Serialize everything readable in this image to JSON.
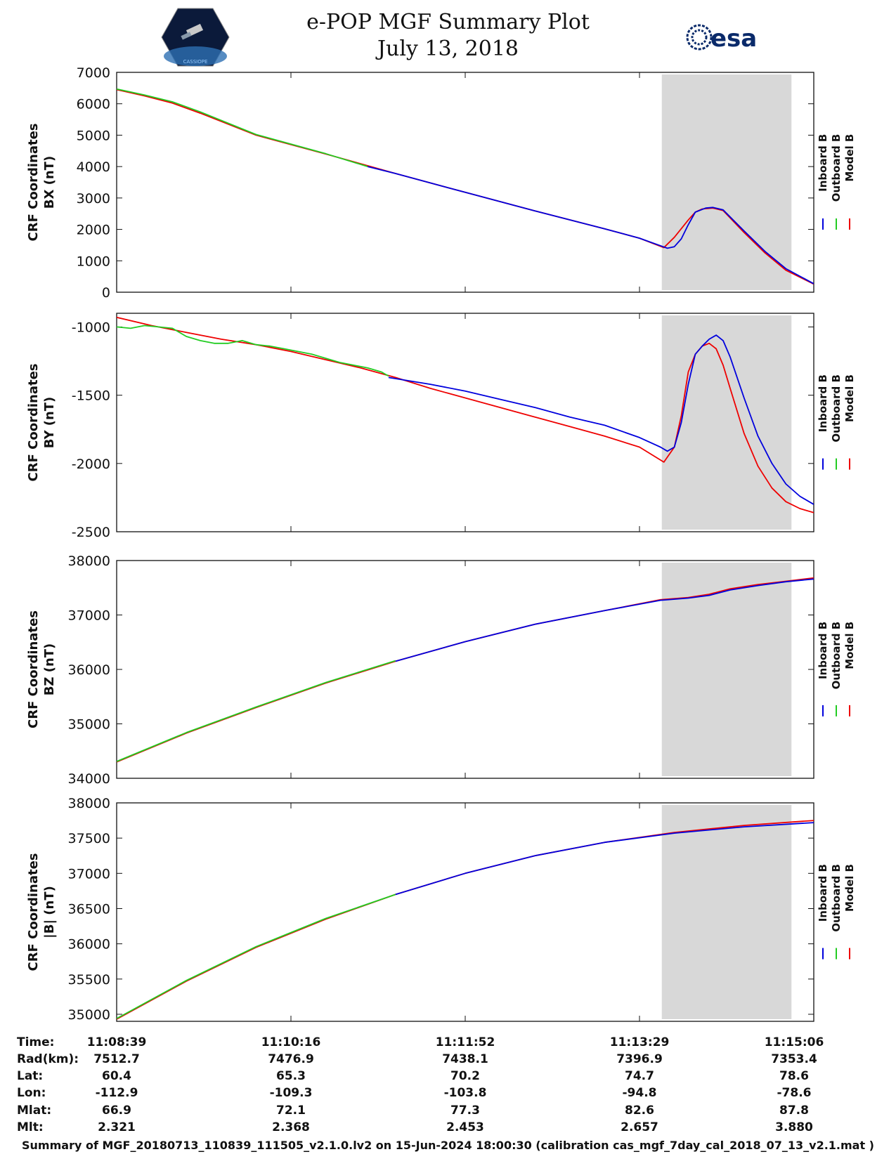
{
  "header": {
    "title_line1": "e-POP MGF Summary Plot",
    "title_line2": "July 13, 2018",
    "left_logo_text": "CASSIOPE",
    "right_logo_text": "esa"
  },
  "colors": {
    "inboard": "#0000dd",
    "outboard": "#22cc22",
    "model": "#ee0000",
    "shade": "#d8d8d8"
  },
  "chart_data": [
    {
      "type": "line",
      "ylabel_line1": "CRF Coordinates",
      "ylabel_line2": "BX (nT)",
      "ylim": [
        0,
        7000
      ],
      "yticks": [
        "0",
        "1000",
        "2000",
        "3000",
        "4000",
        "5000",
        "6000",
        "7000"
      ],
      "legend": [
        "Inboard B",
        "Outboard B",
        "Model B"
      ],
      "shaded_x": [
        0.782,
        0.968
      ],
      "series": [
        {
          "name": "Model B",
          "x": [
            0,
            0.04,
            0.08,
            0.12,
            0.2,
            0.3,
            0.4,
            0.5,
            0.6,
            0.7,
            0.75,
            0.785,
            0.8,
            0.82,
            0.83,
            0.84,
            0.855,
            0.87,
            0.9,
            0.93,
            0.96,
            1.0
          ],
          "y": [
            6450,
            6250,
            6020,
            5700,
            5000,
            4400,
            3780,
            3180,
            2590,
            2020,
            1720,
            1420,
            1750,
            2300,
            2550,
            2650,
            2680,
            2600,
            1900,
            1250,
            700,
            260
          ]
        },
        {
          "name": "Inboard B",
          "x": [
            0.36,
            0.4,
            0.5,
            0.6,
            0.7,
            0.75,
            0.78,
            0.79,
            0.8,
            0.81,
            0.82,
            0.83,
            0.845,
            0.855,
            0.87,
            0.9,
            0.93,
            0.96,
            1.0
          ],
          "y": [
            4000,
            3780,
            3180,
            2590,
            2020,
            1720,
            1480,
            1400,
            1450,
            1700,
            2150,
            2550,
            2680,
            2700,
            2620,
            1950,
            1300,
            750,
            270
          ]
        },
        {
          "name": "Outboard B",
          "x": [
            0,
            0.04,
            0.08,
            0.12,
            0.2,
            0.3,
            0.36
          ],
          "y": [
            6470,
            6280,
            6060,
            5740,
            5020,
            4410,
            4000
          ]
        }
      ]
    },
    {
      "type": "line",
      "ylabel_line1": "CRF Coordinates",
      "ylabel_line2": "BY (nT)",
      "ylim": [
        -2500,
        -900
      ],
      "yticks": [
        "-2500",
        "-2000",
        "-1500",
        "-1000"
      ],
      "legend": [
        "Inboard B",
        "Outboard B",
        "Model B"
      ],
      "shaded_x": [
        0.782,
        0.968
      ],
      "series": [
        {
          "name": "Model B",
          "x": [
            0,
            0.05,
            0.1,
            0.15,
            0.2,
            0.25,
            0.3,
            0.35,
            0.4,
            0.45,
            0.5,
            0.55,
            0.6,
            0.65,
            0.7,
            0.75,
            0.785,
            0.8,
            0.81,
            0.82,
            0.83,
            0.84,
            0.85,
            0.86,
            0.87,
            0.88,
            0.9,
            0.92,
            0.94,
            0.96,
            0.98,
            1.0
          ],
          "y": [
            -930,
            -990,
            -1040,
            -1090,
            -1130,
            -1180,
            -1240,
            -1300,
            -1370,
            -1450,
            -1520,
            -1590,
            -1660,
            -1730,
            -1800,
            -1880,
            -1990,
            -1880,
            -1650,
            -1330,
            -1200,
            -1140,
            -1120,
            -1160,
            -1280,
            -1450,
            -1780,
            -2020,
            -2180,
            -2280,
            -2330,
            -2360
          ]
        },
        {
          "name": "Inboard B",
          "x": [
            0.39,
            0.45,
            0.5,
            0.55,
            0.6,
            0.65,
            0.7,
            0.75,
            0.78,
            0.79,
            0.8,
            0.81,
            0.82,
            0.83,
            0.84,
            0.85,
            0.86,
            0.87,
            0.88,
            0.9,
            0.92,
            0.94,
            0.96,
            0.98,
            1.0
          ],
          "y": [
            -1370,
            -1420,
            -1470,
            -1530,
            -1590,
            -1660,
            -1720,
            -1810,
            -1880,
            -1910,
            -1880,
            -1700,
            -1420,
            -1200,
            -1140,
            -1090,
            -1060,
            -1100,
            -1220,
            -1520,
            -1800,
            -2000,
            -2150,
            -2240,
            -2300
          ]
        },
        {
          "name": "Outboard B",
          "x": [
            0,
            0.02,
            0.04,
            0.06,
            0.08,
            0.1,
            0.12,
            0.14,
            0.16,
            0.18,
            0.2,
            0.22,
            0.24,
            0.26,
            0.28,
            0.3,
            0.32,
            0.34,
            0.36,
            0.38,
            0.39
          ],
          "y": [
            -1000,
            -1010,
            -990,
            -1000,
            -1010,
            -1070,
            -1100,
            -1120,
            -1120,
            -1100,
            -1130,
            -1140,
            -1160,
            -1180,
            -1200,
            -1230,
            -1260,
            -1280,
            -1300,
            -1330,
            -1360
          ]
        }
      ]
    },
    {
      "type": "line",
      "ylabel_line1": "CRF Coordinates",
      "ylabel_line2": "BZ (nT)",
      "ylim": [
        34000,
        38000
      ],
      "yticks": [
        "34000",
        "35000",
        "36000",
        "37000",
        "38000"
      ],
      "legend": [
        "Inboard B",
        "Outboard B",
        "Model B"
      ],
      "shaded_x": [
        0.782,
        0.968
      ],
      "series": [
        {
          "name": "Model B",
          "x": [
            0,
            0.1,
            0.2,
            0.3,
            0.4,
            0.5,
            0.6,
            0.7,
            0.78,
            0.82,
            0.85,
            0.88,
            0.92,
            0.96,
            1.0
          ],
          "y": [
            34300,
            34830,
            35300,
            35750,
            36150,
            36510,
            36830,
            37080,
            37280,
            37320,
            37380,
            37480,
            37560,
            37620,
            37680
          ]
        },
        {
          "name": "Inboard B",
          "x": [
            0.4,
            0.5,
            0.6,
            0.7,
            0.78,
            0.82,
            0.85,
            0.88,
            0.92,
            0.96,
            1.0
          ],
          "y": [
            36150,
            36510,
            36830,
            37080,
            37270,
            37310,
            37360,
            37460,
            37540,
            37610,
            37660
          ]
        },
        {
          "name": "Outboard B",
          "x": [
            0,
            0.1,
            0.2,
            0.3,
            0.4
          ],
          "y": [
            34310,
            34840,
            35310,
            35760,
            36160
          ]
        }
      ]
    },
    {
      "type": "line",
      "ylabel_line1": "CRF Coordinates",
      "ylabel_line2": "|B| (nT)",
      "ylim": [
        34900,
        38000
      ],
      "yticks": [
        "35000",
        "35500",
        "36000",
        "36500",
        "37000",
        "37500",
        "38000"
      ],
      "legend": [
        "Inboard B",
        "Outboard B",
        "Model B"
      ],
      "shaded_x": [
        0.782,
        0.968
      ],
      "series": [
        {
          "name": "Model B",
          "x": [
            0,
            0.1,
            0.2,
            0.3,
            0.4,
            0.5,
            0.6,
            0.7,
            0.8,
            0.9,
            1.0
          ],
          "y": [
            34930,
            35470,
            35950,
            36350,
            36700,
            37000,
            37250,
            37440,
            37580,
            37680,
            37750
          ]
        },
        {
          "name": "Inboard B",
          "x": [
            0.4,
            0.5,
            0.6,
            0.7,
            0.8,
            0.9,
            1.0
          ],
          "y": [
            36700,
            37000,
            37250,
            37440,
            37570,
            37660,
            37720
          ]
        },
        {
          "name": "Outboard B",
          "x": [
            0,
            0.1,
            0.2,
            0.3,
            0.4
          ],
          "y": [
            34940,
            35480,
            35960,
            36360,
            36700
          ]
        }
      ]
    }
  ],
  "ephemeris": {
    "labels": [
      "Time:",
      "Rad(km):",
      "Lat:",
      "Lon:",
      "Mlat:",
      "Mlt:"
    ],
    "columns": [
      [
        "11:08:39",
        "7512.7",
        "60.4",
        "-112.9",
        "66.9",
        "2.321"
      ],
      [
        "11:10:16",
        "7476.9",
        "65.3",
        "-109.3",
        "72.1",
        "2.368"
      ],
      [
        "11:11:52",
        "7438.1",
        "70.2",
        "-103.8",
        "77.3",
        "2.453"
      ],
      [
        "11:13:29",
        "7396.9",
        "74.7",
        "-94.8",
        "82.6",
        "2.657"
      ],
      [
        "11:15:06",
        "7353.4",
        "78.6",
        "-78.6",
        "87.8",
        "3.880"
      ]
    ]
  },
  "footer": "Summary of MGF_20180713_110839_111505_v2.1.0.lv2 on 15-Jun-2024 18:00:30 (calibration cas_mgf_7day_cal_2018_07_13_v2.1.mat )"
}
